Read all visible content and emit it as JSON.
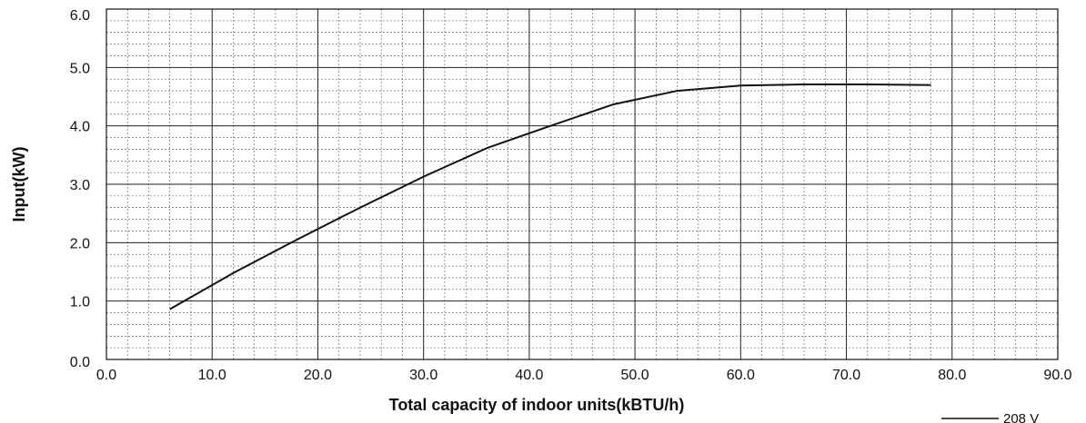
{
  "chart_data": {
    "type": "line",
    "title": "",
    "xlabel": "Total capacity of indoor units(kBTU/h)",
    "ylabel": "Input(kW)",
    "xlim": [
      0,
      90
    ],
    "ylim": [
      0,
      6
    ],
    "x_ticks": [
      "0.0",
      "10.0",
      "20.0",
      "30.0",
      "40.0",
      "50.0",
      "60.0",
      "70.0",
      "80.0",
      "90.0"
    ],
    "y_ticks": [
      "0.0",
      "1.0",
      "2.0",
      "3.0",
      "4.0",
      "5.0",
      "6.0"
    ],
    "grid": true,
    "legend": "bottom-right",
    "series": [
      {
        "name": "208 V",
        "color": "#111111",
        "x": [
          6,
          12,
          18,
          24,
          30,
          36,
          42,
          48,
          54,
          60,
          66,
          72,
          78
        ],
        "y": [
          0.86,
          1.48,
          2.05,
          2.6,
          3.13,
          3.62,
          4.0,
          4.37,
          4.6,
          4.69,
          4.71,
          4.71,
          4.7
        ]
      }
    ]
  }
}
